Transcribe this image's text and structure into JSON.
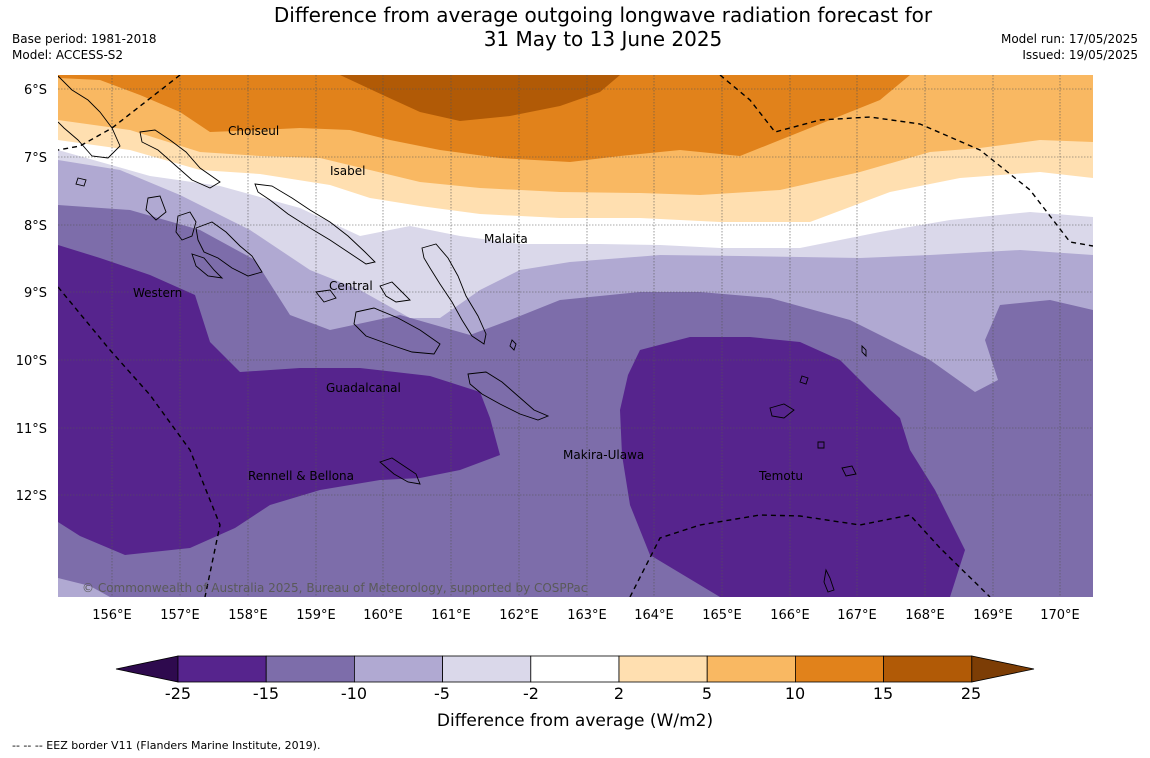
{
  "title_line1": "Difference from average outgoing longwave radiation forecast for",
  "title_line2": "31 May to 13 June 2025",
  "left_meta": {
    "base_period": "Base period: 1981-2018",
    "model": "Model: ACCESS-S2"
  },
  "right_meta": {
    "model_run": "Model run: 17/05/2025",
    "issued": "Issued: 19/05/2025"
  },
  "map": {
    "lat_labels": [
      "6°S",
      "7°S",
      "8°S",
      "9°S",
      "10°S",
      "11°S",
      "12°S"
    ],
    "lon_labels": [
      "156°E",
      "157°E",
      "158°E",
      "159°E",
      "160°E",
      "161°E",
      "162°E",
      "163°E",
      "164°E",
      "165°E",
      "166°E",
      "167°E",
      "168°E",
      "169°E",
      "170°E"
    ],
    "provinces": [
      "Choiseul",
      "Isabel",
      "Malaita",
      "Central",
      "Western",
      "Guadalcanal",
      "Makira-Ulawa",
      "Rennell & Bellona",
      "Temotu"
    ],
    "copyright": "© Commonwealth of Australia 2025, Bureau of Meteorology, supported by COSPPac"
  },
  "colorbar": {
    "ticks": [
      "-25",
      "-15",
      "-10",
      "-5",
      "-2",
      "2",
      "5",
      "10",
      "15",
      "25"
    ],
    "colors": [
      "#56248d",
      "#7d6daa",
      "#b0a9d2",
      "#dad8ea",
      "#ffffff",
      "#ffdfb0",
      "#f9b862",
      "#e1821b",
      "#b15a06"
    ],
    "low_extend_color": "#2e0a4e",
    "high_extend_color": "#7c3d05",
    "label": "Difference from average (W/m2)"
  },
  "footnote": "--  --  -- EEZ border V11 (Flanders Marine Institute, 2019)."
}
